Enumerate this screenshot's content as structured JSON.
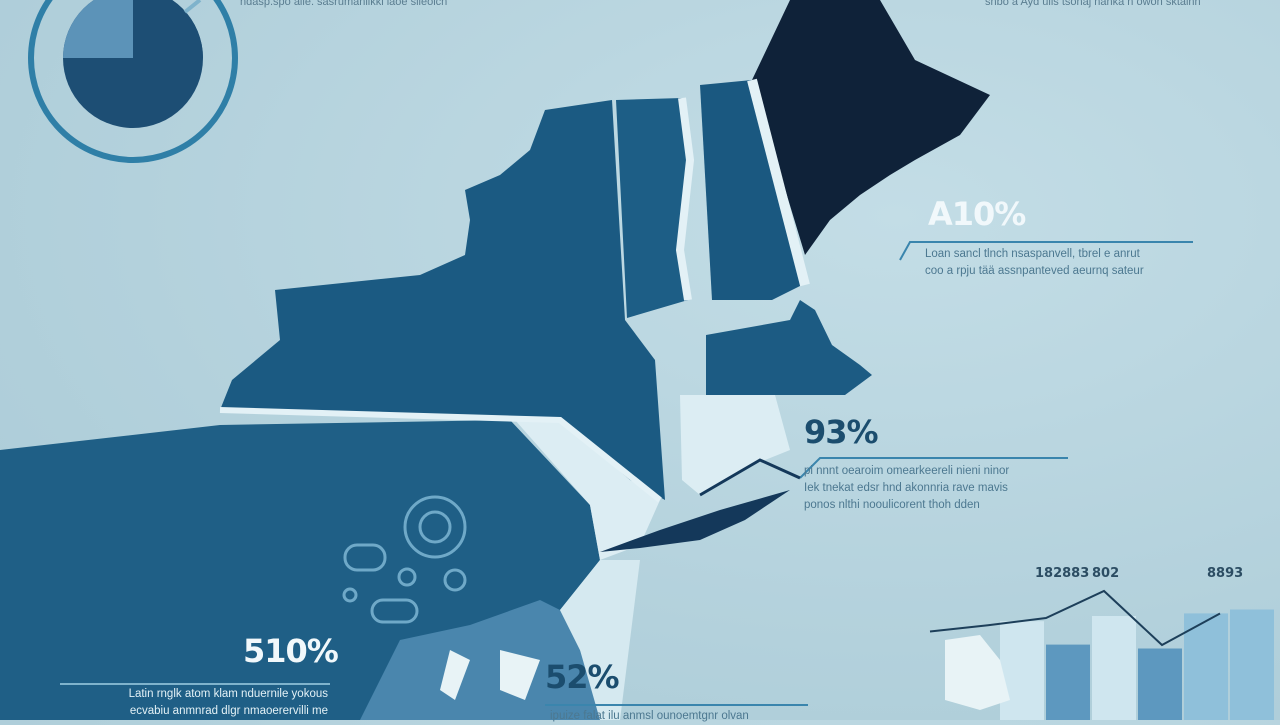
{
  "header": {
    "left_caption": "ndasp.spo alle. sasrumanlikki laoe slleoicn",
    "right_caption": "snbo a Ayd ulis tsonaj nanka n owon sktainn"
  },
  "stats": [
    {
      "value": "A10%",
      "caption": [
        "Loan sancl tlnch nsaspanvell, tbrel e anrut",
        "coo a rpju tää assnpanteved aeurnq sateur"
      ]
    },
    {
      "value": "93%",
      "caption": [
        "pi nnnt oearoim omearkeereli nieni ninor",
        "Iek tnekat edsr hnd akonnria rave mavis",
        "ponos nlthi nooulicorent thoh dden"
      ]
    },
    {
      "value": "510%",
      "caption": [
        "Latin rnglk atom klam nduernile yokous",
        "ecvabiu anmnrad dlgr nmaoerervilli me"
      ]
    },
    {
      "value": "52%",
      "caption": [
        "ipuize falat ilu anmsl ounoemtgnr olvan"
      ]
    }
  ],
  "mini_chart": {
    "labels": [
      "182883",
      "802",
      "8893"
    ],
    "bars": [
      0.76,
      0.58,
      0.8,
      0.55,
      0.82,
      0.85
    ],
    "line": [
      0.55,
      0.62,
      0.7,
      1.0,
      0.4,
      0.75
    ]
  },
  "colors": {
    "new_york": "#1b5a82",
    "maine": "#0f2239",
    "pennsylvania": "#1f5f86",
    "light_state": "#dcedf3",
    "accent_ring": "#2f7fa7"
  }
}
